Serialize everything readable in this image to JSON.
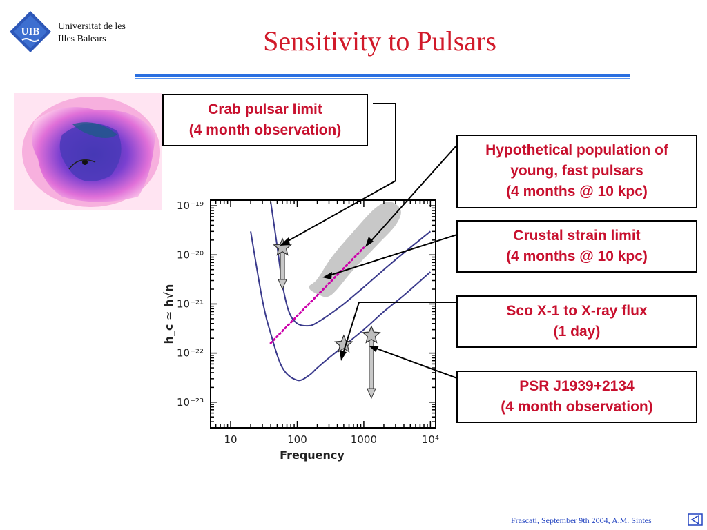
{
  "header": {
    "logo_text": "UIB",
    "university": [
      "Universitat de les",
      "Illes Balears"
    ],
    "title": "Sensitivity to Pulsars"
  },
  "callouts": {
    "crab": [
      "Crab pulsar limit",
      "(4 month observation)"
    ],
    "population": [
      "Hypothetical population of",
      "young, fast pulsars",
      "(4 months @ 10 kpc)"
    ],
    "crustal": [
      "Crustal strain limit",
      "(4 months @ 10 kpc)"
    ],
    "sco": [
      "Sco X-1 to X-ray flux",
      "(1 day)"
    ],
    "psr": [
      "PSR J1939+2134",
      "(4 month observation)"
    ]
  },
  "footer": "Frascati, September  9th 2004, A.M. Sintes",
  "colors": {
    "title": "#d11a2a",
    "callout_text": "#c8102e",
    "curve": "#3a3a8c",
    "crustal_line": "#cc00aa",
    "region": "#c8c8c8",
    "rule": "#2a6fe0"
  },
  "icons": [
    "uib-logo-icon",
    "crab-nebula-image",
    "star-marker-icon",
    "down-arrow-icon",
    "nav-back-icon"
  ],
  "chart_data": {
    "type": "line",
    "xlabel": "Frequency",
    "ylabel": "h_c ≃ h√n",
    "xscale": "log",
    "yscale": "log",
    "xlim": [
      5,
      12000
    ],
    "ylim": [
      3e-24,
      1.3e-19
    ],
    "x_tick_labels": [
      "10",
      "100",
      "1000",
      "10⁴"
    ],
    "y_tick_labels": [
      "10⁻¹⁹",
      "10⁻²⁰",
      "10⁻²¹",
      "10⁻²²",
      "10⁻²³"
    ],
    "x_ticks": [
      10,
      100,
      1000,
      10000
    ],
    "y_ticks": [
      1e-19,
      1e-20,
      1e-21,
      1e-22,
      1e-23
    ],
    "series": [
      {
        "x": [
          40,
          50,
          60,
          75,
          100,
          150,
          200,
          300,
          500,
          1000,
          2000,
          4000,
          10000
        ],
        "y": [
          1.2e-19,
          1.5e-20,
          2.5e-21,
          7e-22,
          4e-22,
          3.6e-22,
          4.2e-22,
          6e-22,
          1e-21,
          2.2e-21,
          5e-21,
          1.1e-20,
          3e-20
        ]
      },
      {
        "x": [
          20,
          30,
          40,
          60,
          100,
          150,
          200,
          300,
          500,
          1000,
          2000,
          4000,
          10000
        ],
        "y": [
          3e-20,
          1.2e-21,
          2.5e-22,
          5e-23,
          2.8e-23,
          3.5e-23,
          5e-23,
          8e-23,
          1.4e-22,
          3e-22,
          7e-22,
          1.5e-21,
          4.5e-21
        ]
      }
    ],
    "crustal_strain_line": {
      "x": [
        40,
        1000
      ],
      "y": [
        1.6e-22,
        1.4e-20
      ]
    },
    "population_region": [
      [
        200,
        3.2e-21
      ],
      [
        150,
        2.2e-21
      ],
      [
        200,
        1.6e-21
      ],
      [
        320,
        1.5e-21
      ],
      [
        700,
        5e-21
      ],
      [
        1600,
        1.6e-20
      ],
      [
        3000,
        4e-20
      ],
      [
        3600,
        8e-20
      ],
      [
        2500,
        1.2e-19
      ],
      [
        1500,
        9e-20
      ],
      [
        700,
        3e-20
      ],
      [
        330,
        9e-21
      ]
    ],
    "markers": [
      {
        "x": 60,
        "y": 1.4e-20,
        "arrow_to": 2e-21
      },
      {
        "x": 500,
        "y": 1.5e-22
      },
      {
        "x": 1300,
        "y": 2.3e-22,
        "arrow_to": 1.2e-23
      }
    ]
  }
}
